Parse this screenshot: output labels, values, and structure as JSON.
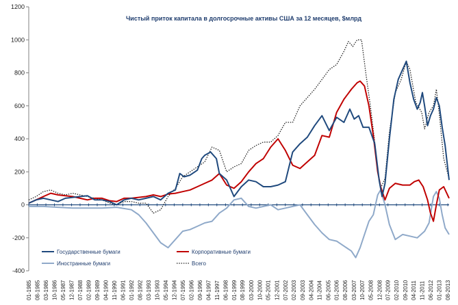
{
  "chart_data": {
    "type": "line",
    "title": "Чистый приток капитала в долгосрочные активы США  за 12 месяцев, $млрд",
    "xlabel": "",
    "ylabel": "",
    "ylim": [
      -400,
      1200
    ],
    "yticks": [
      -400,
      -200,
      0,
      200,
      400,
      600,
      800,
      1000,
      1200
    ],
    "xlim": [
      1985.0,
      2013.67
    ],
    "grid": false,
    "legend_position": "bottom-left",
    "xtick_labels": [
      {
        "x": 1985.0,
        "label": "01-1985"
      },
      {
        "x": 1985.58,
        "label": "08-1985"
      },
      {
        "x": 1986.17,
        "label": "03-1986"
      },
      {
        "x": 1986.75,
        "label": "10-1986"
      },
      {
        "x": 1987.33,
        "label": "05-1987"
      },
      {
        "x": 1987.92,
        "label": "12-1987"
      },
      {
        "x": 1988.5,
        "label": "07-1988"
      },
      {
        "x": 1989.08,
        "label": "02-1989"
      },
      {
        "x": 1989.67,
        "label": "09-1989"
      },
      {
        "x": 1990.25,
        "label": "04-1990"
      },
      {
        "x": 1990.83,
        "label": "11-1990"
      },
      {
        "x": 1991.42,
        "label": "06-1991"
      },
      {
        "x": 1992.0,
        "label": "01-1992"
      },
      {
        "x": 1992.58,
        "label": "08-1992"
      },
      {
        "x": 1993.17,
        "label": "03-1993"
      },
      {
        "x": 1993.75,
        "label": "10-1993"
      },
      {
        "x": 1994.33,
        "label": "05-1994"
      },
      {
        "x": 1994.92,
        "label": "12-1994"
      },
      {
        "x": 1995.5,
        "label": "07-1995"
      },
      {
        "x": 1996.08,
        "label": "02-1996"
      },
      {
        "x": 1996.67,
        "label": "09-1996"
      },
      {
        "x": 1997.25,
        "label": "04-1997"
      },
      {
        "x": 1997.83,
        "label": "11-1997"
      },
      {
        "x": 1998.42,
        "label": "06-1998"
      },
      {
        "x": 1999.0,
        "label": "01-1999"
      },
      {
        "x": 1999.58,
        "label": "08-1999"
      },
      {
        "x": 2000.17,
        "label": "03-2000"
      },
      {
        "x": 2000.75,
        "label": "10-2000"
      },
      {
        "x": 2001.33,
        "label": "05-2001"
      },
      {
        "x": 2001.92,
        "label": "12-2001"
      },
      {
        "x": 2002.5,
        "label": "07-2002"
      },
      {
        "x": 2003.08,
        "label": "02-2003"
      },
      {
        "x": 2003.67,
        "label": "09-2003"
      },
      {
        "x": 2004.25,
        "label": "04-2004"
      },
      {
        "x": 2004.83,
        "label": "11-2004"
      },
      {
        "x": 2005.42,
        "label": "06-2005"
      },
      {
        "x": 2006.0,
        "label": "01-2006"
      },
      {
        "x": 2006.58,
        "label": "08-2006"
      },
      {
        "x": 2007.17,
        "label": "03-2007"
      },
      {
        "x": 2007.75,
        "label": "10-2007"
      },
      {
        "x": 2008.33,
        "label": "05-2008"
      },
      {
        "x": 2008.92,
        "label": "12-2008"
      },
      {
        "x": 2009.5,
        "label": "07-2009"
      },
      {
        "x": 2010.08,
        "label": "02-2010"
      },
      {
        "x": 2010.67,
        "label": "09-2010"
      },
      {
        "x": 2011.25,
        "label": "04-2011"
      },
      {
        "x": 2011.83,
        "label": "11-2011"
      },
      {
        "x": 2012.42,
        "label": "06-2012"
      },
      {
        "x": 2013.0,
        "label": "01-2013"
      },
      {
        "x": 2013.58,
        "label": "08-2013"
      }
    ],
    "series": [
      {
        "name": "Государственные бумаги",
        "color": "#1f497d",
        "style": "solid",
        "x": [
          1985.0,
          1985.5,
          1986.0,
          1986.5,
          1987.0,
          1987.5,
          1988.0,
          1988.5,
          1989.0,
          1989.5,
          1990.0,
          1990.5,
          1991.0,
          1991.5,
          1992.0,
          1992.5,
          1993.0,
          1993.5,
          1994.0,
          1994.5,
          1995.0,
          1995.3,
          1995.6,
          1996.0,
          1996.5,
          1996.8,
          1997.0,
          1997.4,
          1997.8,
          1998.0,
          1998.5,
          1999.0,
          1999.5,
          2000.0,
          2000.5,
          2001.0,
          2001.5,
          2002.0,
          2002.5,
          2003.0,
          2003.5,
          2004.0,
          2004.5,
          2005.0,
          2005.5,
          2006.0,
          2006.5,
          2006.9,
          2007.2,
          2007.5,
          2007.8,
          2008.2,
          2008.6,
          2008.9,
          2009.1,
          2009.3,
          2009.6,
          2009.9,
          2010.2,
          2010.5,
          2010.75,
          2011.0,
          2011.25,
          2011.5,
          2011.7,
          2011.85,
          2012.0,
          2012.2,
          2012.4,
          2012.6,
          2012.8,
          2013.0,
          2013.2,
          2013.4,
          2013.67
        ],
        "values": [
          10,
          30,
          40,
          30,
          20,
          40,
          45,
          50,
          55,
          30,
          30,
          20,
          0,
          30,
          40,
          30,
          40,
          50,
          30,
          70,
          90,
          190,
          170,
          180,
          210,
          280,
          300,
          320,
          280,
          190,
          150,
          50,
          110,
          150,
          140,
          110,
          110,
          120,
          140,
          320,
          370,
          410,
          480,
          540,
          450,
          530,
          500,
          580,
          520,
          540,
          470,
          470,
          370,
          150,
          50,
          130,
          400,
          640,
          760,
          820,
          870,
          740,
          640,
          580,
          620,
          680,
          600,
          480,
          540,
          580,
          650,
          600,
          470,
          360,
          150
        ]
      },
      {
        "name": "Корпоративные бумаги",
        "color": "#c00000",
        "style": "solid",
        "x": [
          1985.0,
          1985.5,
          1986.0,
          1986.5,
          1987.0,
          1987.5,
          1988.0,
          1988.5,
          1989.0,
          1989.5,
          1990.0,
          1990.5,
          1991.0,
          1991.5,
          1992.0,
          1992.5,
          1993.0,
          1993.5,
          1994.0,
          1994.5,
          1995.0,
          1995.5,
          1996.0,
          1996.5,
          1997.0,
          1997.5,
          1998.0,
          1998.5,
          1999.0,
          1999.5,
          2000.0,
          2000.5,
          2001.0,
          2001.5,
          2002.0,
          2002.5,
          2003.0,
          2003.5,
          2004.0,
          2004.5,
          2005.0,
          2005.5,
          2006.0,
          2006.5,
          2007.0,
          2007.4,
          2007.6,
          2007.9,
          2008.2,
          2008.5,
          2008.8,
          2009.0,
          2009.3,
          2009.6,
          2010.0,
          2010.5,
          2011.0,
          2011.3,
          2011.6,
          2011.9,
          2012.2,
          2012.4,
          2012.6,
          2012.8,
          2013.0,
          2013.3,
          2013.67
        ],
        "values": [
          10,
          30,
          50,
          70,
          60,
          55,
          50,
          40,
          30,
          40,
          40,
          25,
          20,
          40,
          40,
          45,
          50,
          60,
          50,
          65,
          70,
          80,
          90,
          110,
          130,
          150,
          190,
          120,
          100,
          140,
          200,
          250,
          280,
          350,
          400,
          330,
          240,
          220,
          260,
          300,
          420,
          410,
          560,
          640,
          700,
          740,
          750,
          720,
          600,
          420,
          200,
          110,
          30,
          100,
          130,
          120,
          120,
          140,
          150,
          110,
          30,
          -50,
          -100,
          0,
          90,
          110,
          40
        ]
      },
      {
        "name": "Иностранные бумаги",
        "color": "#8fa9c9",
        "style": "solid",
        "x": [
          1985.0,
          1986.0,
          1987.0,
          1988.0,
          1989.0,
          1990.0,
          1991.0,
          1992.0,
          1992.5,
          1993.0,
          1993.5,
          1994.0,
          1994.5,
          1995.0,
          1995.5,
          1996.0,
          1996.5,
          1997.0,
          1997.5,
          1998.0,
          1998.5,
          1999.0,
          1999.5,
          2000.0,
          2000.5,
          2001.0,
          2001.5,
          2002.0,
          2002.5,
          2003.0,
          2003.5,
          2004.0,
          2004.5,
          2005.0,
          2005.5,
          2006.0,
          2006.5,
          2007.0,
          2007.3,
          2007.6,
          2007.9,
          2008.2,
          2008.5,
          2008.8,
          2009.0,
          2009.3,
          2009.6,
          2010.0,
          2010.5,
          2011.0,
          2011.5,
          2012.0,
          2012.3,
          2012.6,
          2012.8,
          2013.0,
          2013.2,
          2013.4,
          2013.67
        ],
        "values": [
          -10,
          -10,
          -15,
          -20,
          -20,
          -20,
          -15,
          -30,
          -60,
          -110,
          -170,
          -230,
          -260,
          -210,
          -160,
          -150,
          -130,
          -110,
          -100,
          -50,
          -20,
          30,
          40,
          -10,
          -20,
          -10,
          0,
          -30,
          -20,
          -10,
          0,
          -60,
          -120,
          -170,
          -210,
          -220,
          -250,
          -280,
          -320,
          -260,
          -180,
          -100,
          -60,
          60,
          90,
          0,
          -120,
          -210,
          -180,
          -190,
          -200,
          -160,
          -110,
          50,
          80,
          40,
          -60,
          -140,
          -180
        ]
      },
      {
        "name": "Всего",
        "color": "#222222",
        "style": "dotted",
        "x": [
          1985.0,
          1985.5,
          1986.0,
          1986.5,
          1987.0,
          1987.5,
          1988.0,
          1988.5,
          1989.0,
          1989.5,
          1990.0,
          1990.5,
          1991.0,
          1991.5,
          1992.0,
          1992.5,
          1993.0,
          1993.5,
          1994.0,
          1994.5,
          1995.0,
          1995.5,
          1996.0,
          1996.5,
          1997.0,
          1997.5,
          1998.0,
          1998.5,
          1999.0,
          1999.5,
          2000.0,
          2000.5,
          2001.0,
          2001.5,
          2002.0,
          2002.5,
          2003.0,
          2003.5,
          2004.0,
          2004.5,
          2005.0,
          2005.5,
          2006.0,
          2006.5,
          2006.8,
          2007.1,
          2007.4,
          2007.7,
          2008.0,
          2008.3,
          2008.6,
          2008.8,
          2009.0,
          2009.3,
          2009.6,
          2010.0,
          2010.4,
          2010.75,
          2011.0,
          2011.4,
          2011.8,
          2012.0,
          2012.3,
          2012.6,
          2012.8,
          2013.0,
          2013.3,
          2013.67
        ],
        "values": [
          30,
          50,
          80,
          90,
          70,
          60,
          70,
          60,
          50,
          40,
          30,
          10,
          0,
          20,
          20,
          10,
          10,
          -50,
          -30,
          50,
          100,
          170,
          200,
          230,
          260,
          350,
          330,
          200,
          230,
          250,
          330,
          360,
          380,
          380,
          420,
          500,
          500,
          600,
          650,
          700,
          760,
          820,
          850,
          930,
          990,
          960,
          1000,
          1000,
          790,
          600,
          380,
          200,
          100,
          160,
          440,
          680,
          760,
          870,
          820,
          620,
          560,
          460,
          560,
          600,
          700,
          550,
          280,
          160
        ]
      }
    ]
  }
}
